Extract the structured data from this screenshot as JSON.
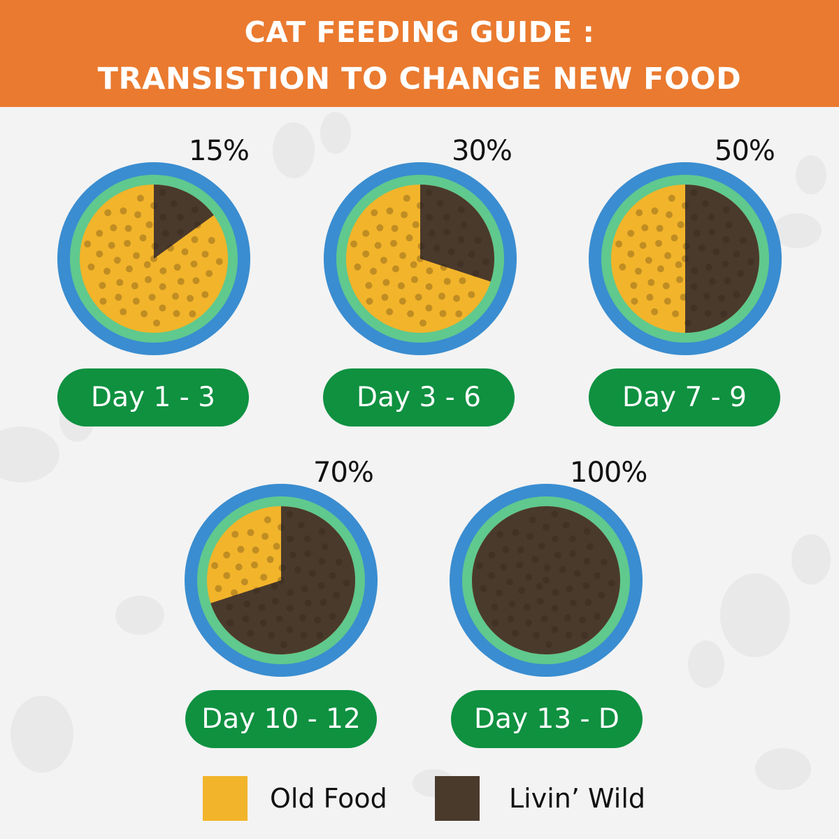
{
  "header": {
    "line1": "CAT FEEDING GUIDE :",
    "line2": "TRANSISTION TO CHANGE NEW FOOD"
  },
  "colors": {
    "header_bg": "#ea7a2f",
    "pill_bg": "#0f9140",
    "bowl_rim": "#3a8dd0",
    "bowl_base": "#5fc98e",
    "old_food": "#f2b42a",
    "new_food": "#4a3a2c"
  },
  "stages": [
    {
      "percent_label": "15%",
      "day_label": "Day 1 - 3",
      "new_food_fraction": 0.15
    },
    {
      "percent_label": "30%",
      "day_label": "Day 3 - 6",
      "new_food_fraction": 0.3
    },
    {
      "percent_label": "50%",
      "day_label": "Day 7 - 9",
      "new_food_fraction": 0.5
    },
    {
      "percent_label": "70%",
      "day_label": "Day 10 - 12",
      "new_food_fraction": 0.7
    },
    {
      "percent_label": "100%",
      "day_label": "Day 13 - D",
      "new_food_fraction": 1.0
    }
  ],
  "legend": {
    "old_label": "Old Food",
    "new_label": "Livin’ Wild"
  }
}
